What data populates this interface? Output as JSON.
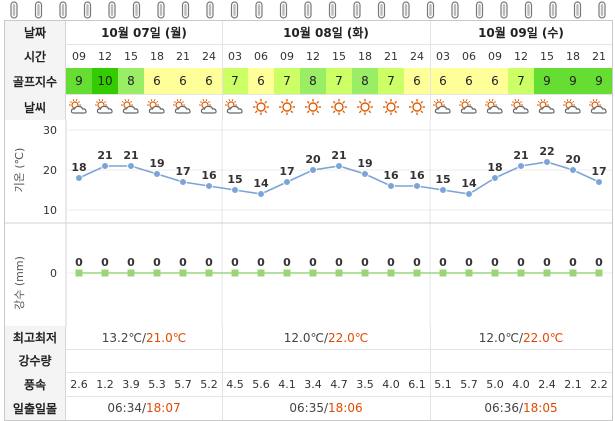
{
  "header": {
    "date_label": "날짜",
    "days": [
      "10월 07일 (월)",
      "10월 08일 (화)",
      "10월 09일 (수)"
    ]
  },
  "time_row": {
    "label": "시간",
    "times": [
      "09",
      "12",
      "15",
      "18",
      "21",
      "24",
      "03",
      "06",
      "09",
      "12",
      "15",
      "18",
      "21",
      "24",
      "03",
      "06",
      "09",
      "12",
      "15",
      "18",
      "21"
    ]
  },
  "golf_row": {
    "label": "골프지수",
    "values": [
      "9",
      "10",
      "8",
      "6",
      "6",
      "6",
      "7",
      "6",
      "7",
      "8",
      "7",
      "8",
      "7",
      "6",
      "6",
      "6",
      "6",
      "7",
      "9",
      "9",
      "9"
    ]
  },
  "weather_row": {
    "label": "날씨",
    "icons": [
      "partly-cloudy-icon",
      "partly-cloudy-icon",
      "partly-cloudy-icon",
      "partly-cloudy-icon",
      "partly-cloudy-icon",
      "partly-cloudy-icon",
      "partly-cloudy-icon",
      "sun-icon",
      "sun-icon",
      "sun-icon",
      "sun-icon",
      "sun-icon",
      "sun-icon",
      "sun-icon",
      "partly-cloudy-icon",
      "partly-cloudy-icon",
      "partly-cloudy-icon",
      "partly-cloudy-icon",
      "partly-cloudy-icon",
      "partly-cloudy-icon",
      "partly-cloudy-icon"
    ]
  },
  "chart_data": [
    {
      "type": "line",
      "ylabel": "기온 (℃)",
      "ylim": [
        10,
        30
      ],
      "yticks": [
        "30",
        "20",
        "10"
      ],
      "x": [
        "09",
        "12",
        "15",
        "18",
        "21",
        "24",
        "03",
        "06",
        "09",
        "12",
        "15",
        "18",
        "21",
        "24",
        "03",
        "06",
        "09",
        "12",
        "15",
        "18",
        "21"
      ],
      "values": [
        18,
        21,
        21,
        19,
        17,
        16,
        15,
        14,
        17,
        20,
        21,
        19,
        16,
        16,
        15,
        14,
        18,
        21,
        22,
        20,
        17
      ],
      "grid": true,
      "line_color": "#7aa5d6"
    },
    {
      "type": "line",
      "ylabel": "강수 (mm)",
      "yticks": [
        "0"
      ],
      "x": [
        "09",
        "12",
        "15",
        "18",
        "21",
        "24",
        "03",
        "06",
        "09",
        "12",
        "15",
        "18",
        "21",
        "24",
        "03",
        "06",
        "09",
        "12",
        "15",
        "18",
        "21"
      ],
      "values": [
        0,
        0,
        0,
        0,
        0,
        0,
        0,
        0,
        0,
        0,
        0,
        0,
        0,
        0,
        0,
        0,
        0,
        0,
        0,
        0,
        0
      ],
      "line_color": "#9bd57a"
    }
  ],
  "minmax_row": {
    "label": "최고최저",
    "days": [
      {
        "low": "13.2℃/",
        "high": "21.0℃"
      },
      {
        "low": "12.0℃/",
        "high": "22.0℃"
      },
      {
        "low": "12.0℃/",
        "high": "22.0℃"
      }
    ]
  },
  "rain_row": {
    "label": "강수량"
  },
  "wind_row": {
    "label": "풍속",
    "values": [
      "2.6",
      "1.2",
      "3.9",
      "5.3",
      "5.7",
      "5.2",
      "4.5",
      "5.6",
      "4.1",
      "3.4",
      "4.7",
      "3.5",
      "4.0",
      "6.1",
      "5.1",
      "5.7",
      "5.0",
      "4.0",
      "2.4",
      "2.1",
      "2.2"
    ]
  },
  "sun_row": {
    "label": "일출일몰",
    "days": [
      {
        "rise": "06:34/",
        "set": "18:07"
      },
      {
        "rise": "06:35/",
        "set": "18:06"
      },
      {
        "rise": "06:36/",
        "set": "18:05"
      }
    ]
  },
  "colors": {
    "golf": {
      "6": "#ffff99",
      "7": "#ccff66",
      "8": "#99ee66",
      "9": "#66dd33",
      "10": "#33cc00"
    },
    "sun": "#e05a00",
    "cloud": "#666666"
  }
}
